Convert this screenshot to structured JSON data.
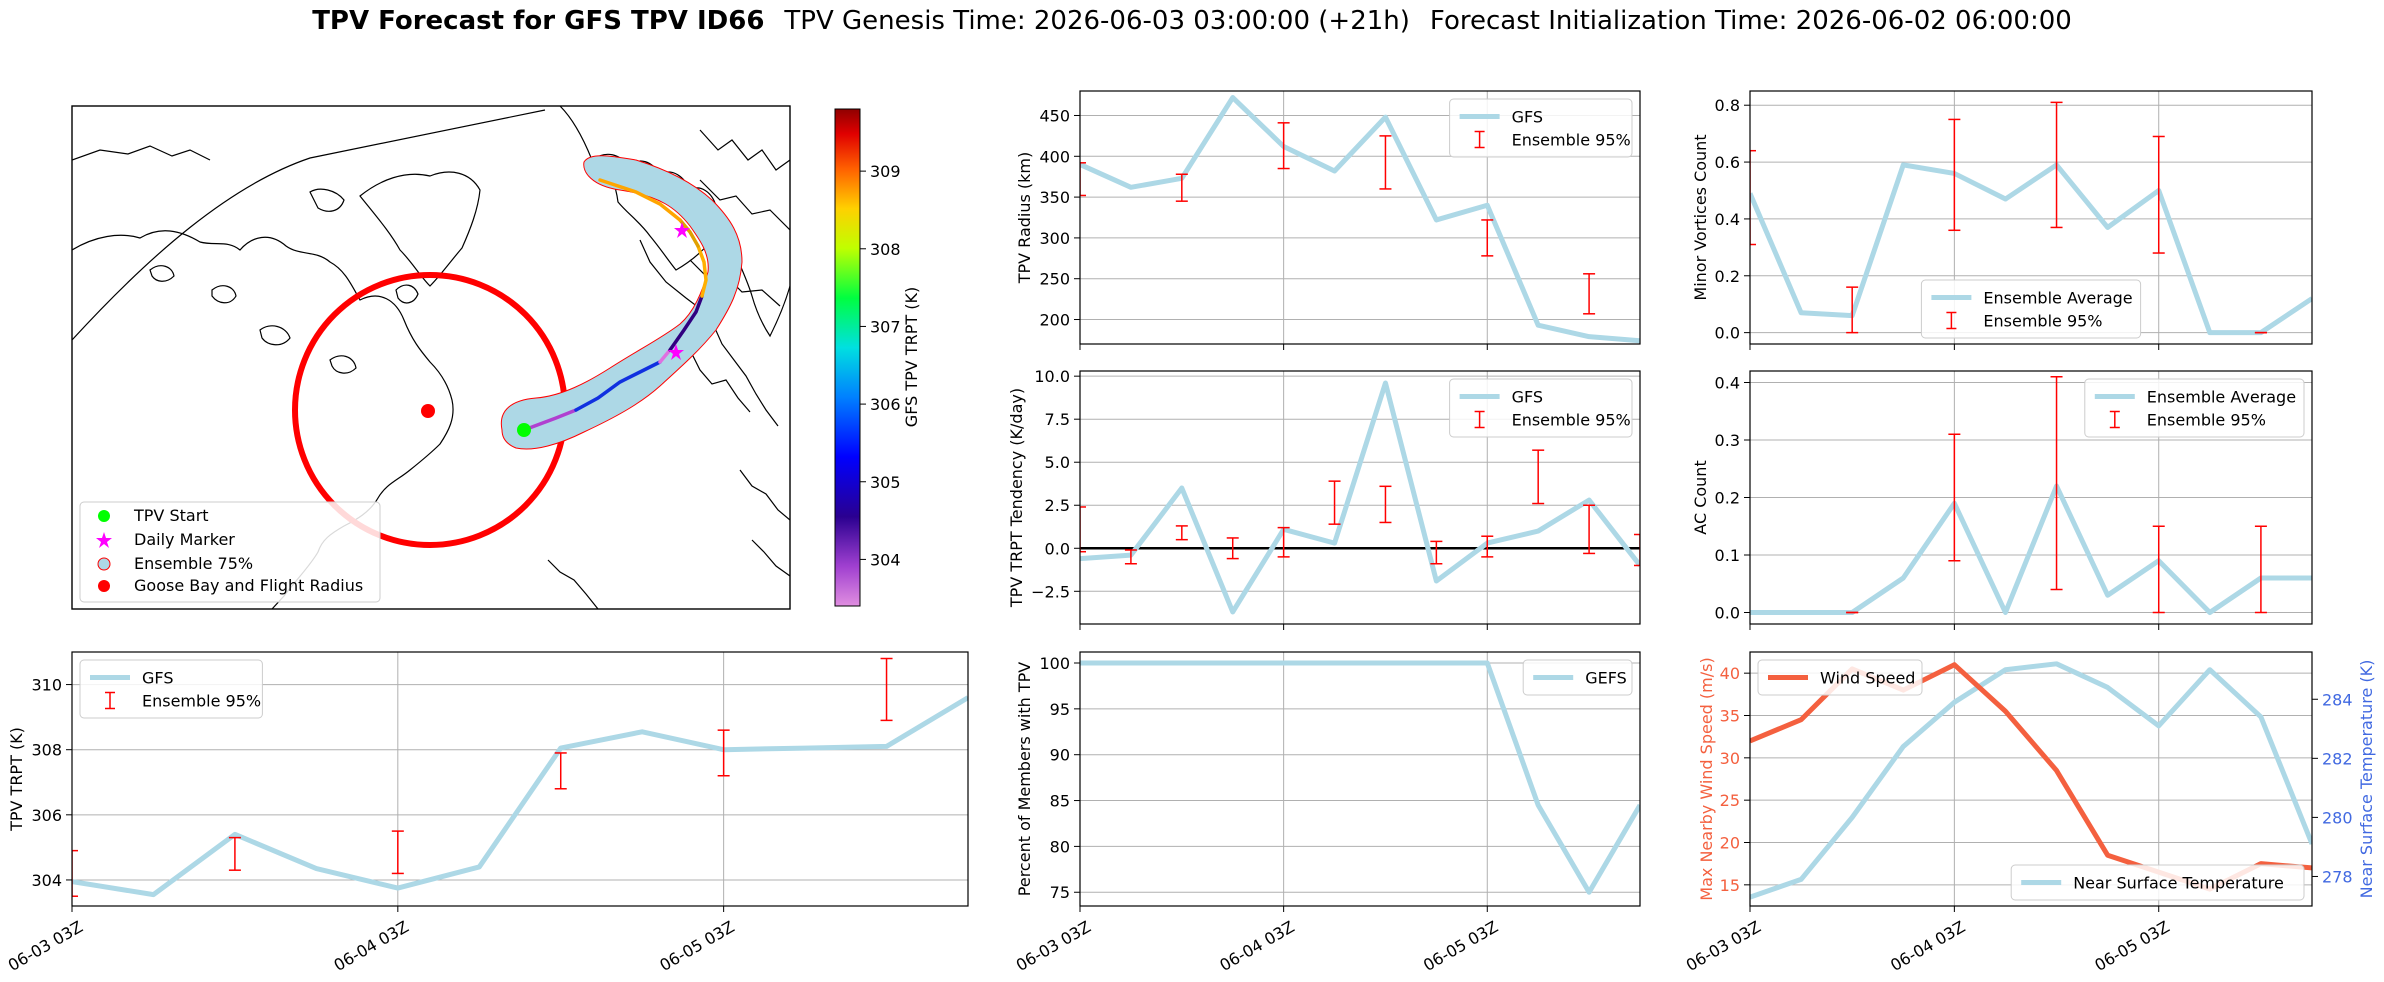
{
  "title": {
    "bold": "TPV Forecast for GFS TPV ID66",
    "genesis": "TPV Genesis Time: 2026-06-03 03:00:00 (+21h)",
    "init": "Forecast Initialization Time: 2026-06-02 06:00:00"
  },
  "colors": {
    "series": "#add8e6",
    "ensemble": "#ff0000",
    "wind": "#f4603f",
    "temp_axis": "#4169e1",
    "grid": "#b0b0b0"
  },
  "time_ticks": [
    "06-03 03Z",
    "06-04 03Z",
    "06-05 03Z"
  ],
  "map": {
    "legend": [
      {
        "label": "TPV Start",
        "marker": "circle",
        "color": "#00ff00"
      },
      {
        "label": "Daily Marker",
        "marker": "star",
        "color": "#ff00ff"
      },
      {
        "label": "Ensemble 75%",
        "marker": "circle-outline",
        "color": "#add8e6"
      },
      {
        "label": "Goose Bay and Flight Radius",
        "marker": "circle",
        "color": "#ff0000"
      }
    ],
    "colorbar": {
      "label": "GFS TPV TRPT (K)",
      "ticks": [
        "304",
        "305",
        "306",
        "307",
        "308",
        "309"
      ],
      "range": [
        303.4,
        309.8
      ]
    }
  },
  "chart_data": [
    {
      "id": "trpt",
      "type": "line",
      "ylabel": "TPV TRPT (K)",
      "ylim": [
        303.2,
        311.0
      ],
      "yticks": [
        304,
        306,
        308,
        310
      ],
      "ytick_labels": [
        "304",
        "306",
        "308",
        "310"
      ],
      "x": [
        0,
        0.25,
        0.5,
        0.75,
        1.0,
        1.25,
        1.5,
        1.75,
        2.0,
        2.25,
        2.5,
        2.75
      ],
      "series": [
        {
          "name": "GFS",
          "values": [
            303.95,
            303.55,
            305.4,
            304.35,
            303.75,
            304.4,
            308.05,
            308.55,
            308.0,
            308.05,
            308.1,
            309.6
          ]
        }
      ],
      "ensemble": {
        "name": "Ensemble 95%",
        "x": [
          0,
          0.5,
          1.0,
          1.5,
          2.0,
          2.5
        ],
        "low": [
          303.5,
          304.3,
          304.2,
          306.8,
          307.2,
          308.9
        ],
        "high": [
          304.9,
          305.3,
          305.5,
          307.9,
          308.6,
          310.8
        ]
      },
      "xlim": [
        0,
        2.75
      ],
      "legend_loc": "upper left"
    },
    {
      "id": "radius",
      "type": "line",
      "ylabel": "TPV Radius (km)",
      "ylim": [
        170,
        480
      ],
      "yticks": [
        200,
        250,
        300,
        350,
        400,
        450
      ],
      "ytick_labels": [
        "200",
        "250",
        "300",
        "350",
        "400",
        "450"
      ],
      "x": [
        0,
        0.25,
        0.5,
        0.75,
        1.0,
        1.25,
        1.5,
        1.75,
        2.0,
        2.25,
        2.5,
        2.75
      ],
      "series": [
        {
          "name": "GFS",
          "values": [
            390,
            362,
            373,
            472,
            412,
            382,
            448,
            322,
            340,
            193,
            179,
            174
          ]
        }
      ],
      "ensemble": {
        "name": "Ensemble 95%",
        "x": [
          0,
          0.5,
          1.0,
          1.5,
          2.0,
          2.5
        ],
        "low": [
          352,
          345,
          385,
          360,
          278,
          207
        ],
        "high": [
          392,
          378,
          441,
          425,
          322,
          256
        ]
      },
      "xlim": [
        0,
        2.75
      ],
      "legend_loc": "upper right"
    },
    {
      "id": "tendency",
      "type": "line",
      "ylabel": "TPV TRPT Tendency (K/day)",
      "ylim": [
        -4.4,
        10.3
      ],
      "yticks": [
        -2.5,
        0,
        2.5,
        5,
        7.5,
        10
      ],
      "ytick_labels": [
        "−2.5",
        "0.0",
        "2.5",
        "5.0",
        "7.5",
        "10.0"
      ],
      "x": [
        0,
        0.25,
        0.5,
        0.75,
        1.0,
        1.25,
        1.5,
        1.75,
        2.0,
        2.25,
        2.5,
        2.75
      ],
      "series": [
        {
          "name": "GFS",
          "values": [
            -0.6,
            -0.4,
            3.5,
            -3.7,
            1.1,
            0.3,
            9.6,
            -1.9,
            0.3,
            1.0,
            2.8,
            -1.0
          ]
        }
      ],
      "ensemble": {
        "name": "Ensemble 95%",
        "x": [
          0,
          0.25,
          0.5,
          0.75,
          1.0,
          1.25,
          1.5,
          1.75,
          2.0,
          2.25,
          2.5,
          2.75
        ],
        "low": [
          -0.2,
          -0.9,
          0.5,
          -0.6,
          -0.5,
          1.4,
          1.5,
          -0.9,
          -0.5,
          2.6,
          -0.3,
          -1.0
        ],
        "high": [
          2.4,
          -0.1,
          1.3,
          0.6,
          1.2,
          3.9,
          3.6,
          0.4,
          0.7,
          5.7,
          2.5,
          0.8
        ]
      },
      "zero_line": true,
      "xlim": [
        0,
        2.75
      ],
      "legend_loc": "upper right"
    },
    {
      "id": "members",
      "type": "line",
      "ylabel": "Percent of Members with TPV",
      "ylim": [
        73.5,
        101.2
      ],
      "yticks": [
        75,
        80,
        85,
        90,
        95,
        100
      ],
      "ytick_labels": [
        "75",
        "80",
        "85",
        "90",
        "95",
        "100"
      ],
      "x": [
        0,
        0.25,
        0.5,
        0.75,
        1.0,
        1.25,
        1.5,
        1.75,
        2.0,
        2.25,
        2.5,
        2.75
      ],
      "series": [
        {
          "name": "GEFS",
          "values": [
            100,
            100,
            100,
            100,
            100,
            100,
            100,
            100,
            100,
            84.5,
            75,
            84.5
          ]
        }
      ],
      "xlim": [
        0,
        2.75
      ],
      "legend_loc": "upper right"
    },
    {
      "id": "minor",
      "type": "line",
      "ylabel": "Minor Vortices Count",
      "ylim": [
        -0.04,
        0.85
      ],
      "yticks": [
        0,
        0.2,
        0.4,
        0.6,
        0.8
      ],
      "ytick_labels": [
        "0.0",
        "0.2",
        "0.4",
        "0.6",
        "0.8"
      ],
      "x": [
        0,
        0.25,
        0.5,
        0.75,
        1.0,
        1.25,
        1.5,
        1.75,
        2.0,
        2.25,
        2.5,
        2.75
      ],
      "series": [
        {
          "name": "Ensemble Average",
          "values": [
            0.49,
            0.07,
            0.06,
            0.59,
            0.56,
            0.47,
            0.59,
            0.37,
            0.5,
            0.0,
            0.0,
            0.12
          ]
        }
      ],
      "ensemble": {
        "name": "Ensemble 95%",
        "x": [
          0,
          0.5,
          1.0,
          1.5,
          2.0,
          2.5
        ],
        "low": [
          0.31,
          0.0,
          0.36,
          0.37,
          0.28,
          0.0
        ],
        "high": [
          0.64,
          0.16,
          0.75,
          0.81,
          0.69,
          0.0
        ]
      },
      "xlim": [
        0,
        2.75
      ],
      "legend_loc": "lower center"
    },
    {
      "id": "ac",
      "type": "line",
      "ylabel": "AC Count",
      "ylim": [
        -0.02,
        0.42
      ],
      "yticks": [
        0,
        0.1,
        0.2,
        0.3,
        0.4
      ],
      "ytick_labels": [
        "0.0",
        "0.1",
        "0.2",
        "0.3",
        "0.4"
      ],
      "x": [
        0,
        0.25,
        0.5,
        0.75,
        1.0,
        1.25,
        1.5,
        1.75,
        2.0,
        2.25,
        2.5,
        2.75
      ],
      "series": [
        {
          "name": "Ensemble Average",
          "values": [
            0.0,
            0.0,
            0.0,
            0.06,
            0.19,
            0.0,
            0.22,
            0.03,
            0.09,
            0.0,
            0.06,
            0.06
          ]
        }
      ],
      "ensemble": {
        "name": "Ensemble 95%",
        "x": [
          0.5,
          1.0,
          1.5,
          2.0,
          2.5
        ],
        "low": [
          0.0,
          0.09,
          0.04,
          0.0,
          0.0
        ],
        "high": [
          0.0,
          0.31,
          0.41,
          0.15,
          0.15
        ]
      },
      "xlim": [
        0,
        2.75
      ],
      "legend_loc": "upper right"
    },
    {
      "id": "wind",
      "type": "line",
      "ylabel": "Max Nearby Wind Speed (m/s)",
      "ylim": [
        12.5,
        42.5
      ],
      "yticks": [
        15,
        20,
        25,
        30,
        35,
        40
      ],
      "ytick_labels": [
        "15",
        "20",
        "25",
        "30",
        "35",
        "40"
      ],
      "x": [
        0,
        0.25,
        0.5,
        0.75,
        1.0,
        1.25,
        1.5,
        1.75,
        2.0,
        2.25,
        2.5,
        2.75
      ],
      "series": [
        {
          "name": "Wind Speed",
          "values": [
            32,
            34.5,
            40.5,
            38,
            41,
            35.5,
            28.5,
            18.5,
            16.5,
            14.5,
            17.5,
            17
          ]
        }
      ],
      "xlim": [
        0,
        2.75
      ],
      "legend_loc": "upper left",
      "twin": {
        "ylabel": "Near Surface Temperature (K)",
        "ylim": [
          277.0,
          285.6
        ],
        "yticks": [
          278,
          280,
          282,
          284
        ],
        "ytick_labels": [
          "278",
          "280",
          "282",
          "284"
        ],
        "series": [
          {
            "name": "Near Surface Temperature",
            "values": [
              277.3,
              277.9,
              280.0,
              282.4,
              283.9,
              285.0,
              285.2,
              284.4,
              283.1,
              285.0,
              283.4,
              279.1
            ]
          }
        ],
        "legend_loc": "lower right"
      }
    }
  ]
}
